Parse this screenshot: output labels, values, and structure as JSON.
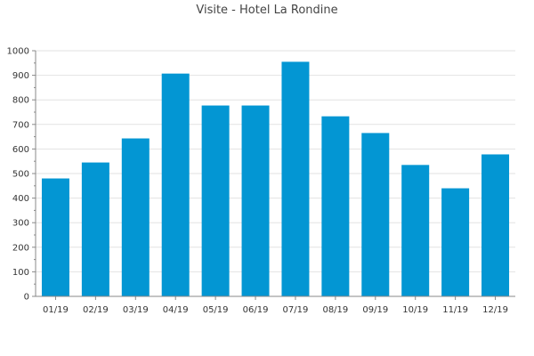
{
  "chart_data": {
    "type": "bar",
    "title": "Visite - Hotel La Rondine",
    "xlabel": "",
    "ylabel": "",
    "categories": [
      "01/19",
      "02/19",
      "03/19",
      "04/19",
      "05/19",
      "06/19",
      "07/19",
      "08/19",
      "09/19",
      "10/19",
      "11/19",
      "12/19"
    ],
    "values": [
      480,
      545,
      643,
      907,
      777,
      777,
      955,
      733,
      665,
      535,
      440,
      578
    ],
    "ylim": [
      0,
      1000
    ],
    "yticks": [
      0,
      100,
      200,
      300,
      400,
      500,
      600,
      700,
      800,
      900,
      1000
    ],
    "grid": true,
    "legend": "none",
    "colors": {
      "bar": "#0396d3",
      "grid": "#e2e2e2",
      "axis": "#888888",
      "text": "#333333"
    }
  }
}
